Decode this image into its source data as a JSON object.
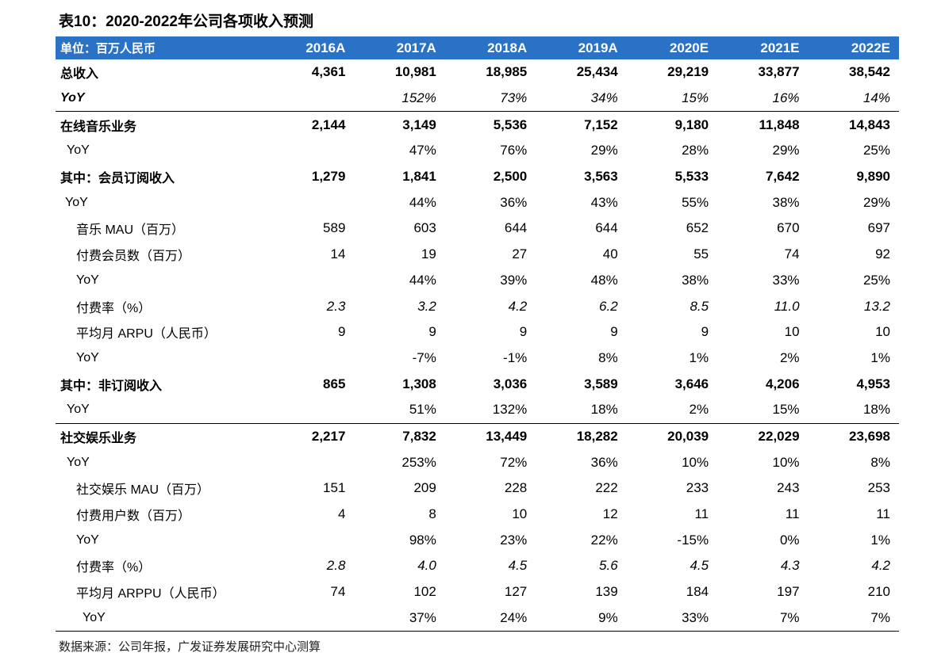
{
  "title": "表10：2020-2022年公司各项收入预测",
  "table": {
    "header": [
      "单位：百万人民币",
      "2016A",
      "2017A",
      "2018A",
      "2019A",
      "2020E",
      "2021E",
      "2022E"
    ],
    "rows": [
      [
        "总收入",
        "4,361",
        "10,981",
        "18,985",
        "25,434",
        "29,219",
        "33,877",
        "38,542"
      ],
      [
        "YoY",
        null,
        "152%",
        "73%",
        "34%",
        "15%",
        "16%",
        "14%"
      ],
      [
        "在线音乐业务",
        "2,144",
        "3,149",
        "5,536",
        "7,152",
        "9,180",
        "11,848",
        "14,843"
      ],
      [
        "YoY",
        null,
        "47%",
        "76%",
        "29%",
        "28%",
        "29%",
        "25%"
      ],
      [
        "其中：会员订阅收入",
        "1,279",
        "1,841",
        "2,500",
        "3,563",
        "5,533",
        "7,642",
        "9,890"
      ],
      [
        "YoY",
        null,
        "44%",
        "36%",
        "43%",
        "55%",
        "38%",
        "29%"
      ],
      [
        "音乐 MAU（百万）",
        "589",
        "603",
        "644",
        "644",
        "652",
        "670",
        "697"
      ],
      [
        "付费会员数（百万）",
        "14",
        "19",
        "27",
        "40",
        "55",
        "74",
        "92"
      ],
      [
        "YoY",
        null,
        "44%",
        "39%",
        "48%",
        "38%",
        "33%",
        "25%"
      ],
      [
        "付费率（%）",
        "2.3",
        "3.2",
        "4.2",
        "6.2",
        "8.5",
        "11.0",
        "13.2"
      ],
      [
        "平均月 ARPU（人民币）",
        "9",
        "9",
        "9",
        "9",
        "9",
        "10",
        "10"
      ],
      [
        "YoY",
        null,
        "-7%",
        "-1%",
        "8%",
        "1%",
        "2%",
        "1%"
      ],
      [
        "其中：非订阅收入",
        "865",
        "1,308",
        "3,036",
        "3,589",
        "3,646",
        "4,206",
        "4,953"
      ],
      [
        "YoY",
        null,
        "51%",
        "132%",
        "18%",
        "2%",
        "15%",
        "18%"
      ],
      [
        "社交娱乐业务",
        "2,217",
        "7,832",
        "13,449",
        "18,282",
        "20,039",
        "22,029",
        "23,698"
      ],
      [
        "YoY",
        null,
        "253%",
        "72%",
        "36%",
        "10%",
        "10%",
        "8%"
      ],
      [
        "社交娱乐 MAU（百万）",
        "151",
        "209",
        "228",
        "222",
        "233",
        "243",
        "253"
      ],
      [
        "付费用户数（百万）",
        "4",
        "8",
        "10",
        "12",
        "11",
        "11",
        "11"
      ],
      [
        "YoY",
        null,
        "98%",
        "23%",
        "22%",
        "-15%",
        "0%",
        "1%"
      ],
      [
        "付费率（%）",
        "2.8",
        "4.0",
        "4.5",
        "5.6",
        "4.5",
        "4.3",
        "4.2"
      ],
      [
        "平均月 ARPPU（人民币）",
        "74",
        "102",
        "127",
        "139",
        "184",
        "197",
        "210"
      ],
      [
        "YoY",
        null,
        "37%",
        "24%",
        "9%",
        "33%",
        "7%",
        "7%"
      ]
    ]
  },
  "source": "数据来源：公司年报，广发证券发展研究中心测算"
}
